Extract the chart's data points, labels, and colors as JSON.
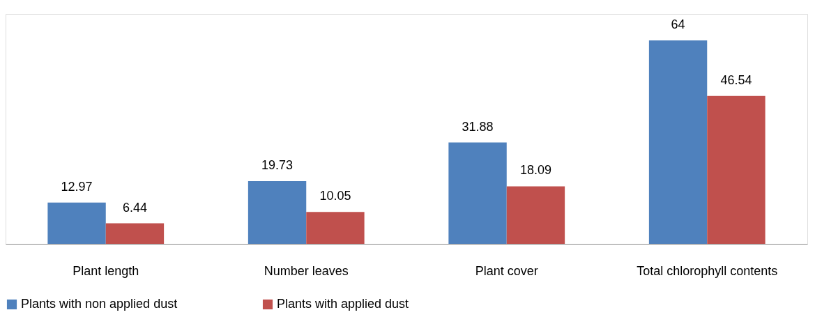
{
  "chart_data": {
    "type": "bar",
    "categories": [
      "Plant length",
      "Number leaves",
      "Plant cover",
      "Total chlorophyll contents"
    ],
    "series": [
      {
        "name": "Plants with non applied dust",
        "color": "#4f81bd",
        "values": [
          12.97,
          19.73,
          31.88,
          64
        ]
      },
      {
        "name": "Plants with applied dust",
        "color": "#c0504d",
        "values": [
          6.44,
          10.05,
          18.09,
          46.54
        ]
      }
    ],
    "data_labels": true,
    "legend": "bottom",
    "grid": false,
    "tick_labels": "x"
  }
}
